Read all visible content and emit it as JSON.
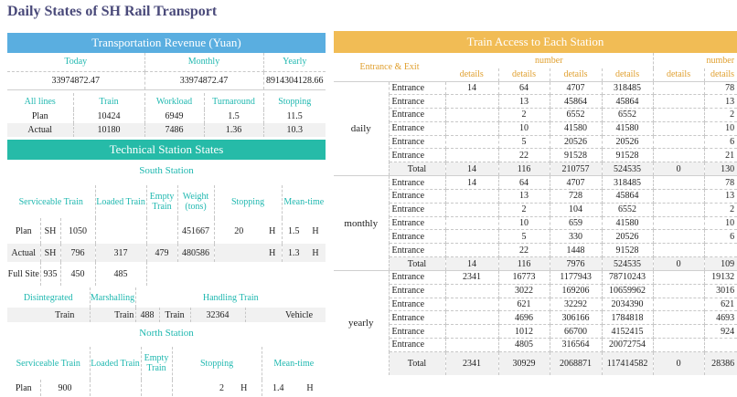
{
  "page_title": "Daily States of SH Rail Transport",
  "colors": {
    "revenue_header": "#5aaee0",
    "station_header": "#26bba8",
    "access_header": "#f1bc55",
    "teal_text": "#20b8b0",
    "orange_text": "#e0a030"
  },
  "revenue": {
    "header": "Transportation Revenue (Yuan)",
    "today_label": "Today",
    "monthly_label": "Monthly",
    "yearly_label": "Yearly",
    "today_value": "33974872.47",
    "monthly_value": "33974872.47",
    "yearly_value": "8914304128.66",
    "cols": [
      "All lines",
      "Train",
      "Workload",
      "Turnaround",
      "Stopping"
    ],
    "rows": [
      {
        "label": "Plan",
        "train": "10424",
        "workload": "6949",
        "turnaround": "1.5",
        "stopping": "11.5"
      },
      {
        "label": "Actual",
        "train": "10180",
        "workload": "7486",
        "turnaround": "1.36",
        "stopping": "10.3"
      }
    ]
  },
  "technical": {
    "header": "Technical Station States",
    "south_title": "South Station",
    "south_cols": {
      "serviceable": "Serviceable Train",
      "loaded": "Loaded Train",
      "empty": "Empty Train",
      "weight": "Weight (tons)",
      "stopping": "Stopping",
      "mean": "Mean-time"
    },
    "plan": {
      "label": "Plan",
      "sh": "SH",
      "serv": "1050",
      "loaded": "",
      "empty": "",
      "weight": "451667",
      "stop": "20",
      "stop_unit": "H",
      "mean": "1.5",
      "mean_unit": "H"
    },
    "actual": {
      "label": "Actual",
      "sh": "SH",
      "serv": "796",
      "loaded": "317",
      "empty": "479",
      "weight": "480586",
      "stop": "",
      "stop_unit": "H",
      "mean": "1.3",
      "mean_unit": "H"
    },
    "full": {
      "label": "Full Site",
      "a": "935",
      "b": "450",
      "c": "485"
    },
    "sub_cols": {
      "disintegrated": "Disintegrated",
      "marshalling": "Marshalling",
      "handling": "Handling Train"
    },
    "sub_row": {
      "train1": "Train",
      "train2": "Train",
      "n1": "488",
      "train3": "Train",
      "n2": "32364",
      "vehicle": "Vehicle"
    },
    "north_title": "North Station",
    "north_cols": {
      "serviceable": "Serviceable Train",
      "loaded": "Loaded Train",
      "empty": "Empty Train",
      "stopping": "Stopping",
      "mean": "Mean-time"
    },
    "north_plan": {
      "label": "Plan",
      "serv": "900",
      "stop": "2",
      "stop_unit": "H",
      "mean": "1.4",
      "mean_unit": "H"
    }
  },
  "access": {
    "header": "Train Access to Each Station",
    "entrance_exit": "Entrance & Exit",
    "number_label": "number",
    "details": "details",
    "entrance": "Entrance",
    "total": "Total",
    "groups": [
      {
        "name": "daily",
        "rows": [
          {
            "a": "14",
            "b": "64",
            "c": "4707",
            "d": "318485",
            "e": "",
            "f": "78"
          },
          {
            "a": "",
            "b": "13",
            "c": "45864",
            "d": "45864",
            "e": "",
            "f": "13"
          },
          {
            "a": "",
            "b": "2",
            "c": "6552",
            "d": "6552",
            "e": "",
            "f": "2"
          },
          {
            "a": "",
            "b": "10",
            "c": "41580",
            "d": "41580",
            "e": "",
            "f": "10"
          },
          {
            "a": "",
            "b": "5",
            "c": "20526",
            "d": "20526",
            "e": "",
            "f": "6"
          },
          {
            "a": "",
            "b": "22",
            "c": "91528",
            "d": "91528",
            "e": "",
            "f": "21"
          }
        ],
        "total": {
          "a": "14",
          "b": "116",
          "c": "210757",
          "d": "524535",
          "e": "0",
          "f": "130"
        }
      },
      {
        "name": "monthly",
        "rows": [
          {
            "a": "14",
            "b": "64",
            "c": "4707",
            "d": "318485",
            "e": "",
            "f": "78"
          },
          {
            "a": "",
            "b": "13",
            "c": "728",
            "d": "45864",
            "e": "",
            "f": "13"
          },
          {
            "a": "",
            "b": "2",
            "c": "104",
            "d": "6552",
            "e": "",
            "f": "2"
          },
          {
            "a": "",
            "b": "10",
            "c": "659",
            "d": "41580",
            "e": "",
            "f": "10"
          },
          {
            "a": "",
            "b": "5",
            "c": "330",
            "d": "20526",
            "e": "",
            "f": "6"
          },
          {
            "a": "",
            "b": "22",
            "c": "1448",
            "d": "91528",
            "e": "",
            "f": ""
          }
        ],
        "total": {
          "a": "14",
          "b": "116",
          "c": "7976",
          "d": "524535",
          "e": "0",
          "f": "109"
        }
      },
      {
        "name": "yearly",
        "rows": [
          {
            "a": "2341",
            "b": "16773",
            "c": "1177943",
            "d": "78710243",
            "e": "",
            "f": "19132"
          },
          {
            "a": "",
            "b": "3022",
            "c": "169206",
            "d": "10659962",
            "e": "",
            "f": "3016"
          },
          {
            "a": "",
            "b": "621",
            "c": "32292",
            "d": "2034390",
            "e": "",
            "f": "621"
          },
          {
            "a": "",
            "b": "4696",
            "c": "306166",
            "d": "1784818",
            "e": "",
            "f": "4693"
          },
          {
            "a": "",
            "b": "1012",
            "c": "66700",
            "d": "4152415",
            "e": "",
            "f": "924"
          },
          {
            "a": "",
            "b": "4805",
            "c": "316564",
            "d": "20072754",
            "e": "",
            "f": ""
          }
        ],
        "total": {
          "a": "2341",
          "b": "30929",
          "c": "2068871",
          "d": "117414582",
          "e": "0",
          "f": "28386"
        }
      }
    ]
  }
}
